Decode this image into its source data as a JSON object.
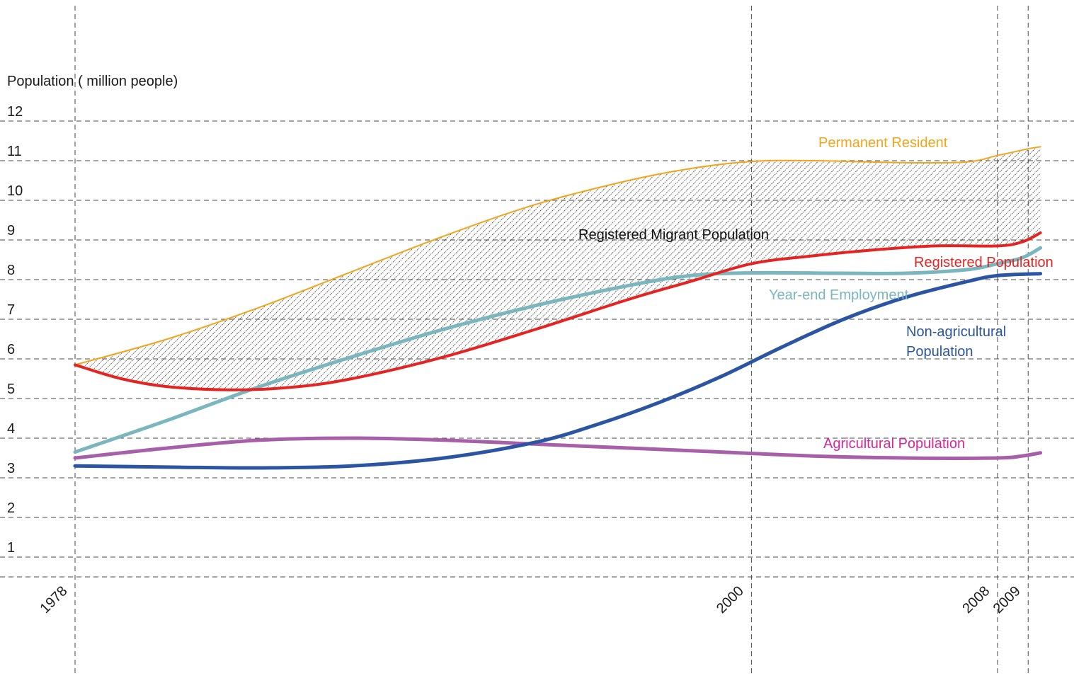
{
  "chart_data": {
    "type": "line",
    "ylabel": "Population ( million people)",
    "xlabel": "",
    "ylim": [
      0,
      12
    ],
    "xlim": [
      1978,
      2009.8
    ],
    "y_ticks": [
      1,
      2,
      3,
      4,
      5,
      6,
      7,
      8,
      9,
      10,
      11,
      12
    ],
    "x_ticks": [
      1978,
      2000,
      2008,
      2009
    ],
    "grid": true,
    "shaded_region": {
      "label": "Registered Migrant Population",
      "between": [
        "Permanent Resident",
        "Registered Population"
      ],
      "pattern": "hatched"
    },
    "series": [
      {
        "name": "Permanent Resident",
        "color": "#F2A51A",
        "width": 2,
        "label_lines": [
          "Permanent Resident"
        ],
        "points": [
          [
            1978,
            5.85
          ],
          [
            1981,
            6.5
          ],
          [
            1984,
            7.3
          ],
          [
            1987,
            8.2
          ],
          [
            1990,
            9.1
          ],
          [
            1993,
            9.9
          ],
          [
            1996,
            10.5
          ],
          [
            1998,
            10.8
          ],
          [
            2000,
            10.98
          ],
          [
            2002,
            11.0
          ],
          [
            2005,
            10.95
          ],
          [
            2007,
            10.97
          ],
          [
            2008,
            11.13
          ],
          [
            2009,
            11.3
          ],
          [
            2009.4,
            11.35
          ]
        ]
      },
      {
        "name": "Registered Population",
        "color": "#E52421",
        "width": 4,
        "label_lines": [
          "Registered Population"
        ],
        "points": [
          [
            1978,
            5.85
          ],
          [
            1979.5,
            5.5
          ],
          [
            1981,
            5.3
          ],
          [
            1983,
            5.22
          ],
          [
            1985,
            5.28
          ],
          [
            1987,
            5.5
          ],
          [
            1990,
            6.05
          ],
          [
            1993,
            6.75
          ],
          [
            1996,
            7.5
          ],
          [
            1998,
            7.95
          ],
          [
            2000,
            8.4
          ],
          [
            2002,
            8.6
          ],
          [
            2004,
            8.75
          ],
          [
            2006,
            8.85
          ],
          [
            2008,
            8.85
          ],
          [
            2008.8,
            8.95
          ],
          [
            2009.4,
            9.18
          ]
        ]
      },
      {
        "name": "Year-end Employment",
        "color": "#7AB6BE",
        "width": 5,
        "label_lines": [
          "Year-end Employment"
        ],
        "points": [
          [
            1978,
            3.65
          ],
          [
            1981,
            4.45
          ],
          [
            1984,
            5.3
          ],
          [
            1987,
            6.05
          ],
          [
            1990,
            6.75
          ],
          [
            1993,
            7.35
          ],
          [
            1996,
            7.85
          ],
          [
            1998,
            8.1
          ],
          [
            2000,
            8.17
          ],
          [
            2003,
            8.16
          ],
          [
            2005,
            8.16
          ],
          [
            2007,
            8.25
          ],
          [
            2008,
            8.4
          ],
          [
            2008.8,
            8.55
          ],
          [
            2009.4,
            8.8
          ]
        ]
      },
      {
        "name": "Non-agricultural Population",
        "color": "#2B55A3",
        "width": 5,
        "label_lines": [
          "Non-agricultural",
          "Population"
        ],
        "points": [
          [
            1978,
            3.3
          ],
          [
            1981,
            3.27
          ],
          [
            1984,
            3.25
          ],
          [
            1987,
            3.3
          ],
          [
            1990,
            3.5
          ],
          [
            1993,
            3.9
          ],
          [
            1995,
            4.35
          ],
          [
            1997,
            4.9
          ],
          [
            1999,
            5.55
          ],
          [
            2001,
            6.3
          ],
          [
            2003,
            7.0
          ],
          [
            2005,
            7.55
          ],
          [
            2007,
            7.95
          ],
          [
            2008,
            8.1
          ],
          [
            2009.4,
            8.15
          ]
        ]
      },
      {
        "name": "Agricultural Population",
        "color": "#A65FA8",
        "width": 5,
        "label_lines": [
          "Agricultural Population"
        ],
        "label_color": "#D9259B",
        "points": [
          [
            1978,
            3.5
          ],
          [
            1981,
            3.75
          ],
          [
            1984,
            3.95
          ],
          [
            1987,
            4.0
          ],
          [
            1990,
            3.95
          ],
          [
            1993,
            3.85
          ],
          [
            1996,
            3.75
          ],
          [
            1999,
            3.65
          ],
          [
            2002,
            3.55
          ],
          [
            2005,
            3.5
          ],
          [
            2008,
            3.5
          ],
          [
            2008.8,
            3.55
          ],
          [
            2009.4,
            3.63
          ]
        ]
      }
    ]
  }
}
